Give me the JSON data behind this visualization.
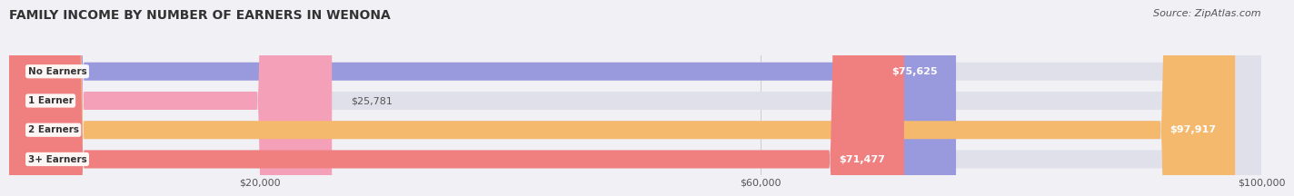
{
  "title": "FAMILY INCOME BY NUMBER OF EARNERS IN WENONA",
  "source": "Source: ZipAtlas.com",
  "categories": [
    "No Earners",
    "1 Earner",
    "2 Earners",
    "3+ Earners"
  ],
  "values": [
    75625,
    25781,
    97917,
    71477
  ],
  "bar_colors": [
    "#9999dd",
    "#f4a0b8",
    "#f5b96e",
    "#f08080"
  ],
  "value_labels": [
    "$75,625",
    "$25,781",
    "$97,917",
    "$71,477"
  ],
  "xmax": 100000,
  "xticks": [
    20000,
    60000,
    100000
  ],
  "xtick_labels": [
    "$20,000",
    "$60,000",
    "$100,000"
  ],
  "background_color": "#f0f0f5",
  "title_fontsize": 10,
  "label_fontsize": 8,
  "value_fontsize": 8,
  "source_fontsize": 8
}
